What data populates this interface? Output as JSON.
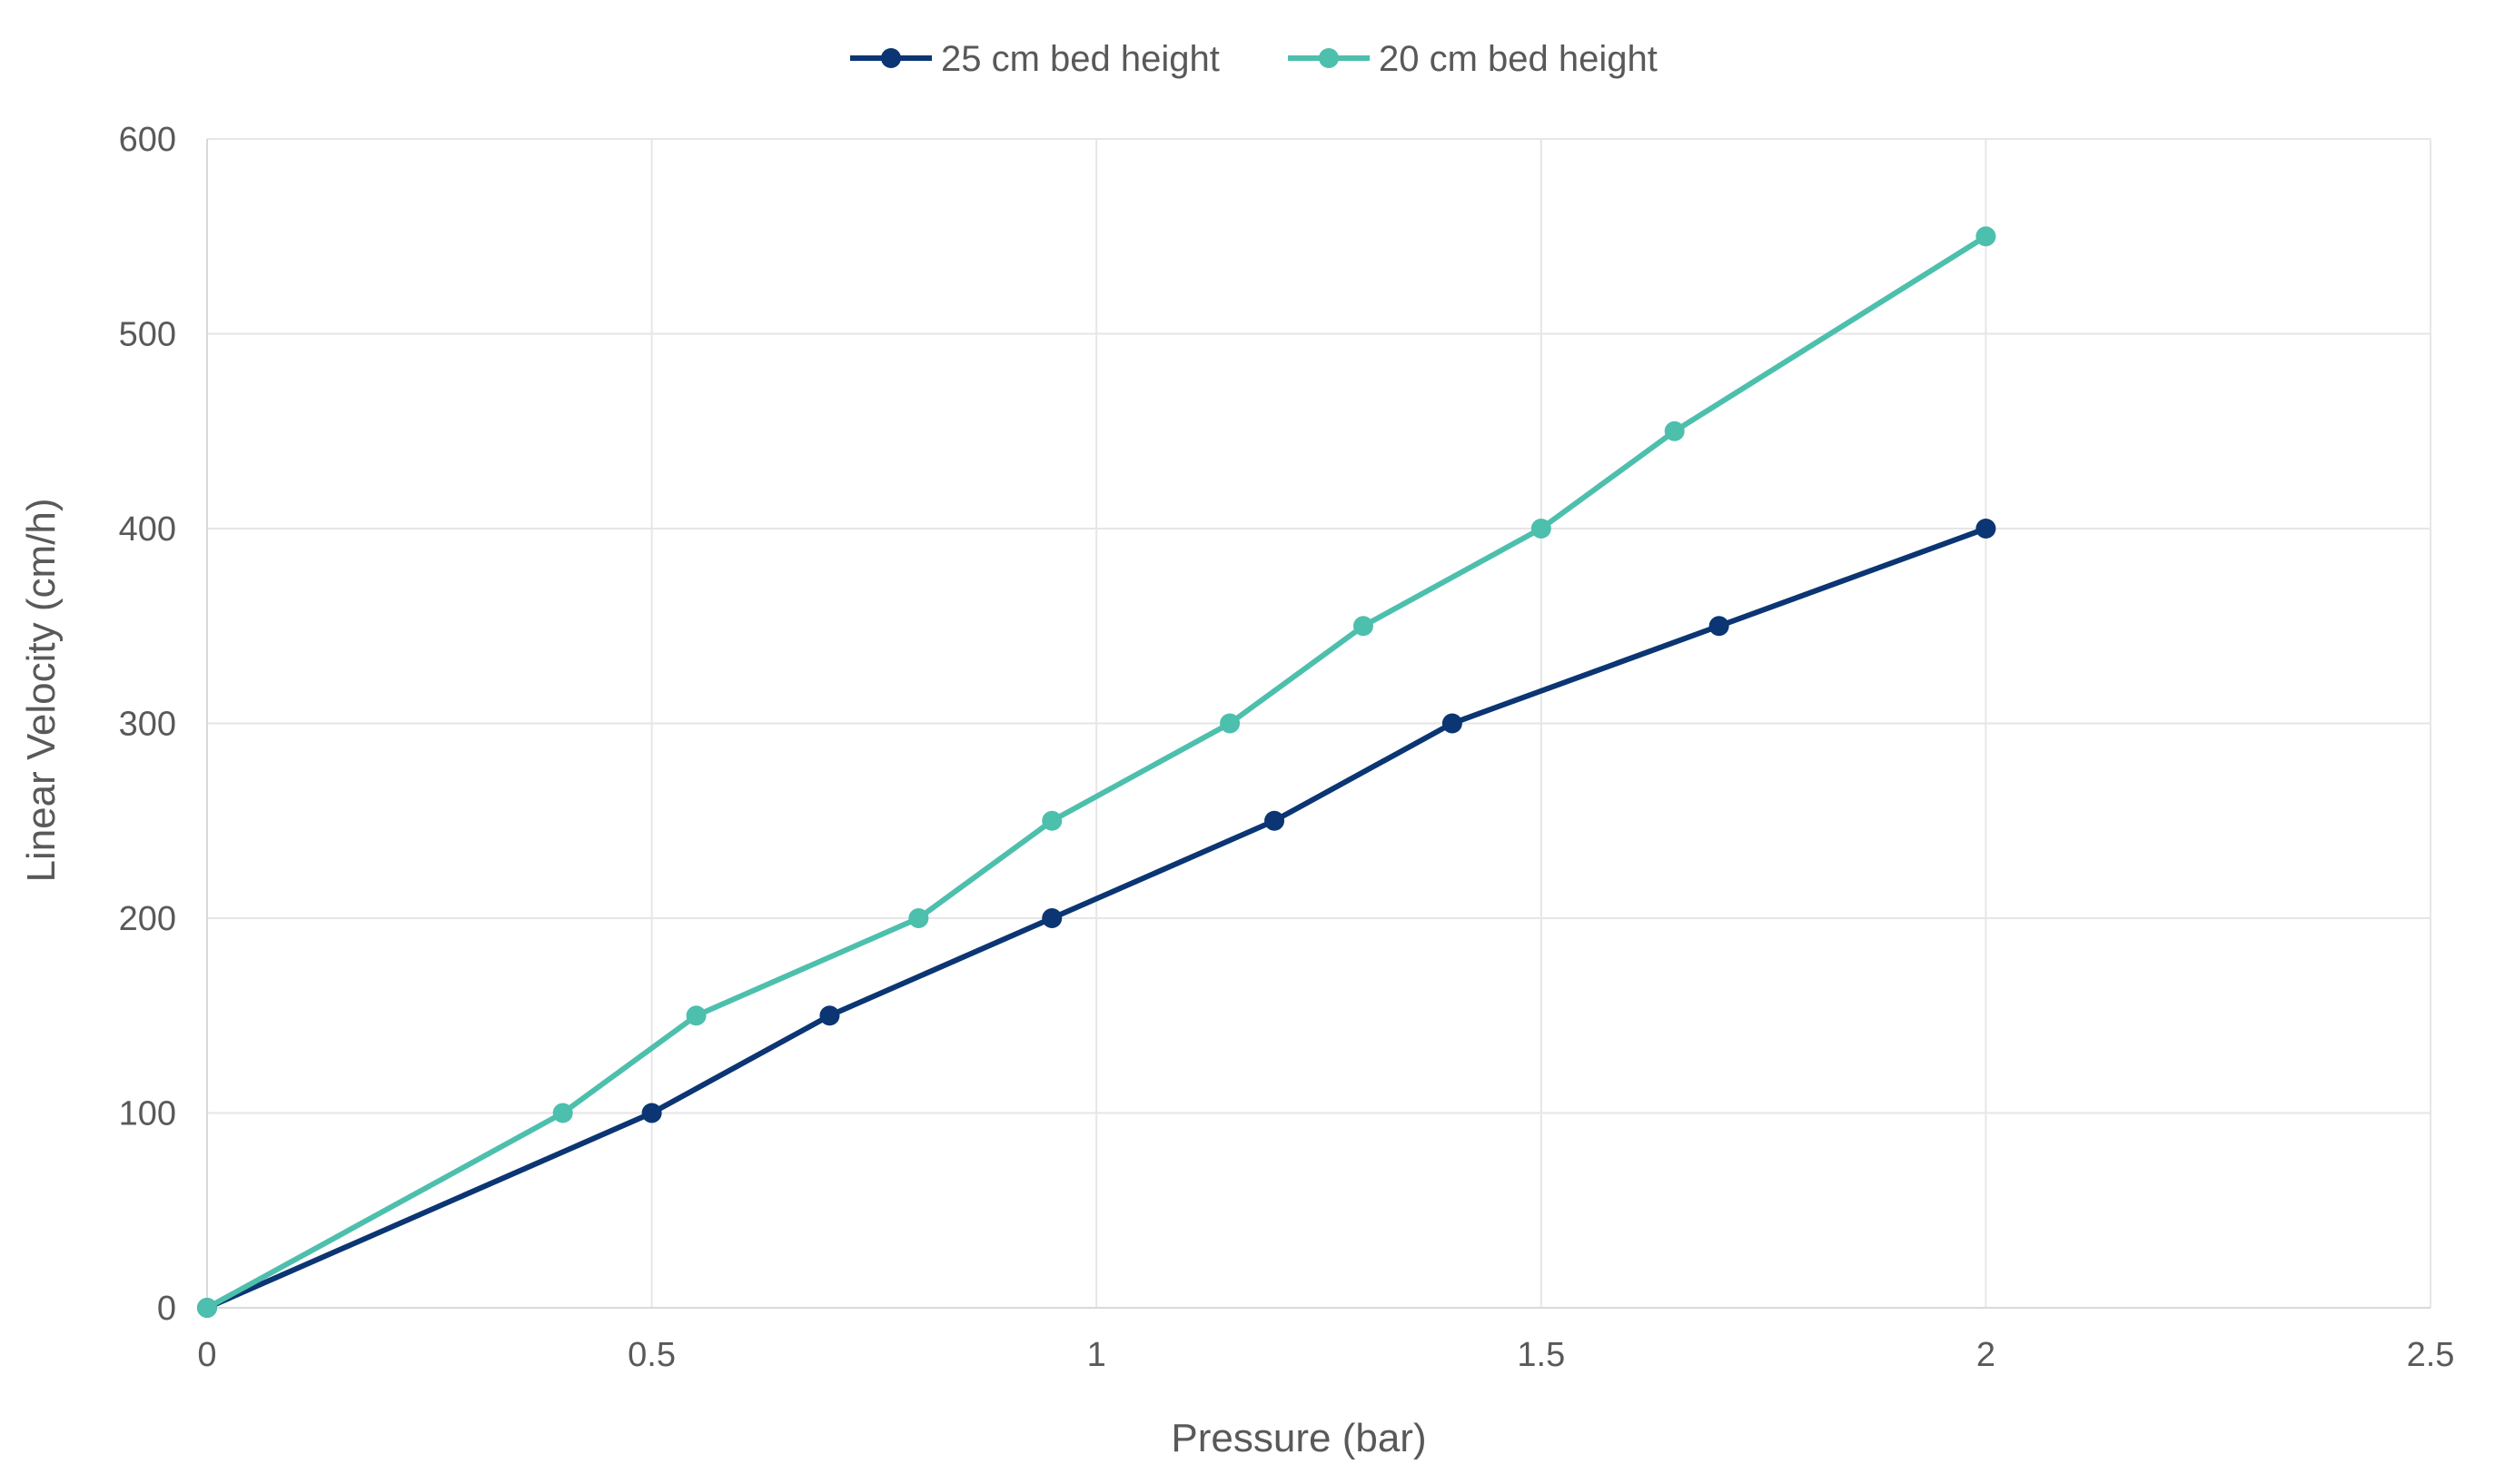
{
  "chart_data": {
    "type": "line",
    "title": "",
    "xlabel": "Pressure (bar)",
    "ylabel": "Linear Velocity (cm/h)",
    "xlim": [
      0,
      2.5
    ],
    "ylim": [
      0,
      600
    ],
    "x_ticks": [
      0,
      0.5,
      1,
      1.5,
      2,
      2.5
    ],
    "y_ticks": [
      0,
      100,
      200,
      300,
      400,
      500,
      600
    ],
    "grid": true,
    "legend_position": "top",
    "series": [
      {
        "name": "25 cm bed height",
        "color": "#0b3573",
        "x": [
          0,
          0.5,
          0.7,
          0.95,
          1.2,
          1.4,
          1.7,
          2
        ],
        "y": [
          0,
          100,
          150,
          200,
          250,
          300,
          350,
          400
        ]
      },
      {
        "name": "20 cm bed height",
        "color": "#4dbfad",
        "x": [
          0,
          0.4,
          0.55,
          0.8,
          0.95,
          1.15,
          1.3,
          1.5,
          1.65,
          2
        ],
        "y": [
          0,
          100,
          150,
          200,
          250,
          300,
          350,
          400,
          450,
          550
        ]
      }
    ]
  }
}
